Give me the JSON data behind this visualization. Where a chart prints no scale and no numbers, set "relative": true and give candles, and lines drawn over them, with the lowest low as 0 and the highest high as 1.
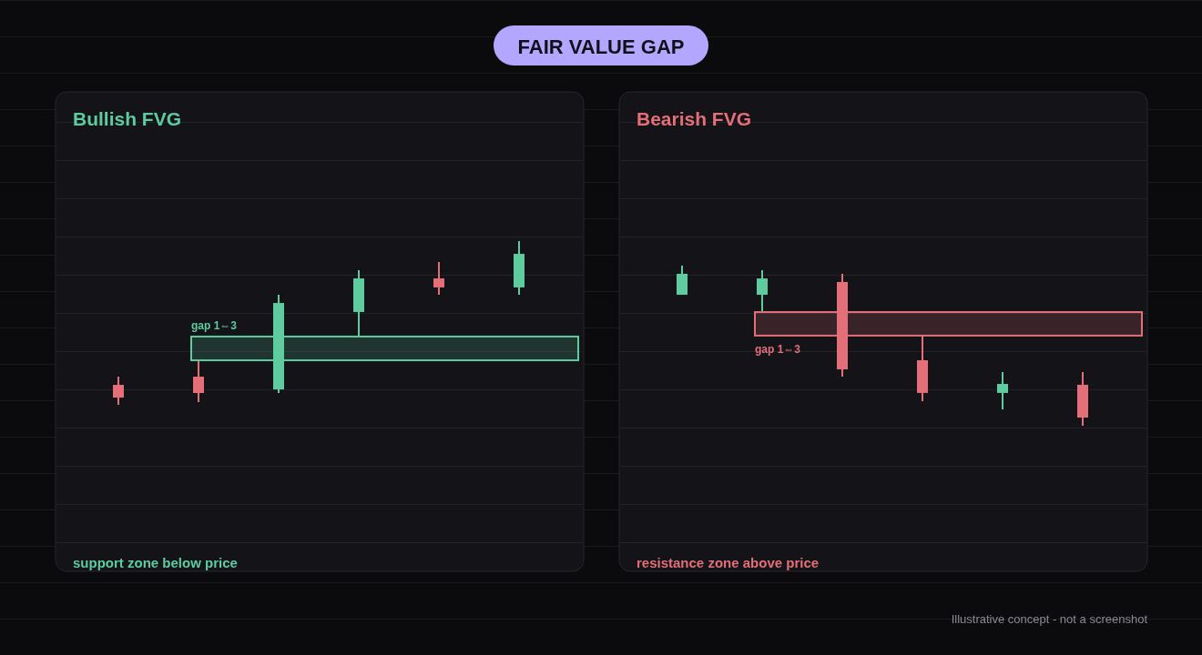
{
  "chart_data": [
    {
      "type": "other",
      "title": "FAIR VALUE GAP",
      "annotations": [
        "Illustrative concept - not a screenshot"
      ]
    },
    {
      "type": "candlestick",
      "title": "Bullish FVG",
      "relative": true,
      "categories": [
        null,
        null,
        null,
        null,
        null,
        null
      ],
      "ohlc": [
        [
          0.122,
          0.172,
          0,
          0.044
        ],
        [
          0.172,
          0.267,
          0.017,
          0.072
        ],
        [
          0.094,
          0.672,
          0.072,
          0.622
        ],
        [
          0.567,
          0.822,
          0.422,
          0.772
        ],
        [
          0.772,
          0.872,
          0.672,
          0.717
        ],
        [
          0.717,
          1,
          0.672,
          0.922
        ]
      ],
      "colors": [
        "#e46f78",
        "#e46f78",
        "#5ecc9f",
        "#5ecc9f",
        "#e46f78",
        "#5ecc9f"
      ],
      "bands": [
        {
          "axis": "y",
          "from": 0.272,
          "to": 0.417,
          "label": "gap 1⇔3",
          "color": "#5ecc9f"
        }
      ],
      "annotations": [
        "support zone below price"
      ]
    },
    {
      "type": "candlestick",
      "title": "Bearish FVG",
      "relative": true,
      "categories": [
        null,
        null,
        null,
        null,
        null,
        null
      ],
      "ohlc": [
        [
          0.818,
          1,
          0.818,
          0.949
        ],
        [
          0.818,
          0.972,
          0.716,
          0.92
        ],
        [
          0.898,
          0.949,
          0.307,
          0.352
        ],
        [
          0.409,
          0.563,
          0.153,
          0.205
        ],
        [
          0.205,
          0.335,
          0.102,
          0.261
        ],
        [
          0.256,
          0.335,
          0,
          0.051
        ]
      ],
      "colors": [
        "#5ecc9f",
        "#5ecc9f",
        "#e46f78",
        "#e46f78",
        "#5ecc9f",
        "#e46f78"
      ],
      "bands": [
        {
          "axis": "y",
          "from": 0.563,
          "to": 0.71,
          "label": "gap 1⇔3",
          "color": "#e46f78"
        }
      ],
      "annotations": [
        "resistance zone above price"
      ]
    }
  ]
}
